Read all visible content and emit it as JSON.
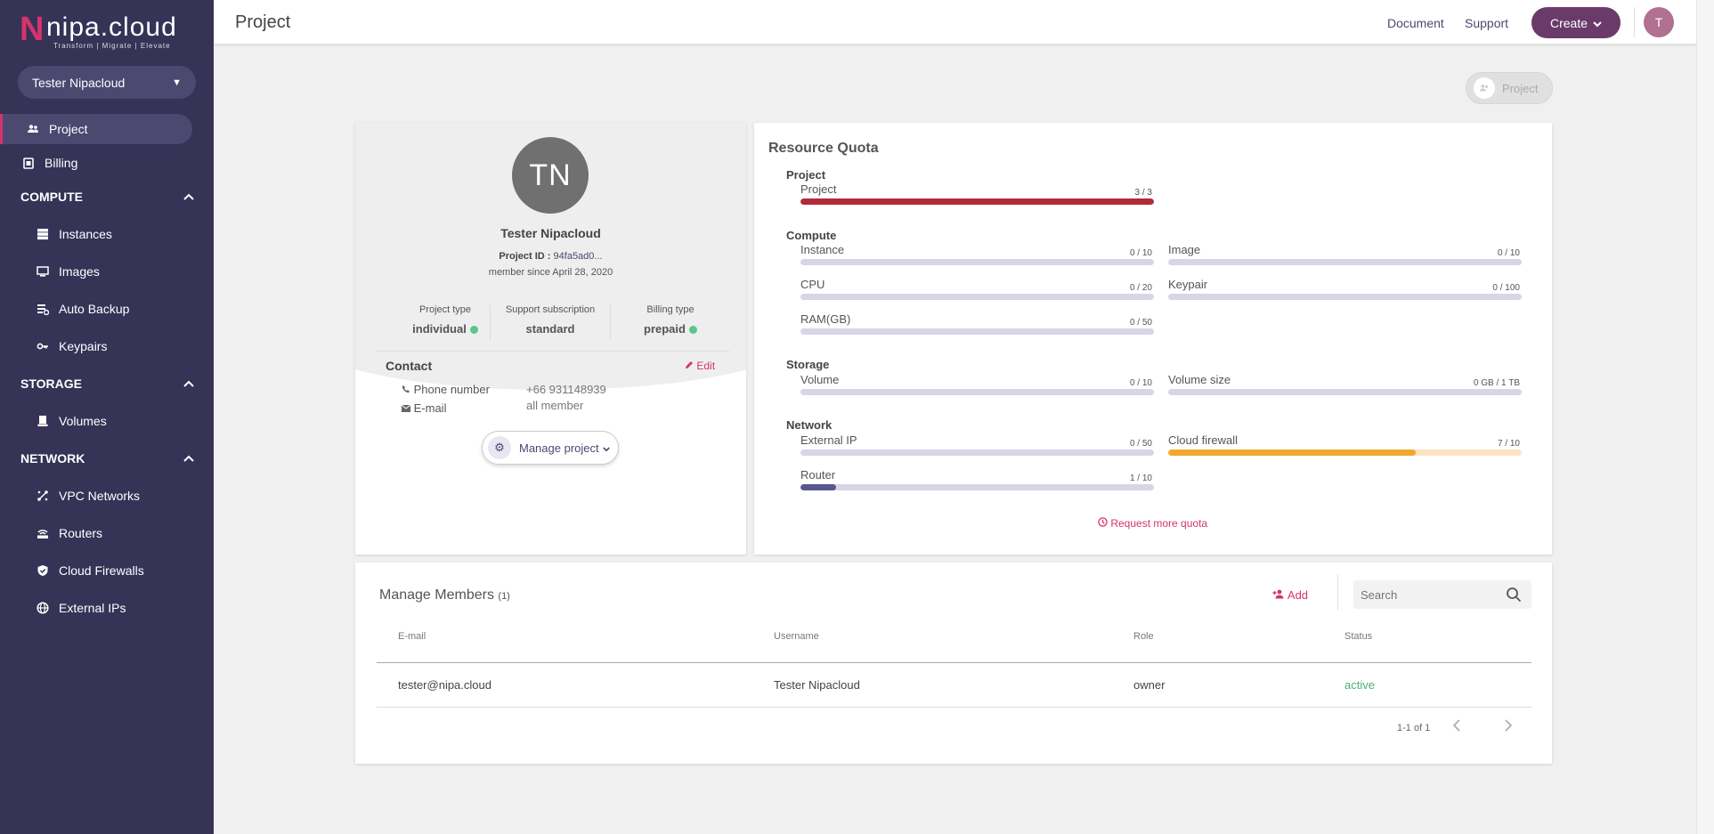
{
  "sidebar": {
    "logo_text": "nipa.cloud",
    "logo_tagline": "Transform  |  Migrate  |  Elevate",
    "org": "Tester Nipacloud",
    "items": {
      "project": "Project",
      "billing": "Billing",
      "compute": "COMPUTE",
      "instances": "Instances",
      "images": "Images",
      "auto_backup": "Auto Backup",
      "keypairs": "Keypairs",
      "storage": "STORAGE",
      "volumes": "Volumes",
      "network": "NETWORK",
      "vpc": "VPC Networks",
      "routers": "Routers",
      "firewalls": "Cloud Firewalls",
      "external_ips": "External IPs"
    }
  },
  "topbar": {
    "title": "Project",
    "document": "Document",
    "support": "Support",
    "create": "Create",
    "avatar": "T"
  },
  "project_pill": "Project",
  "profile": {
    "initials": "TN",
    "name": "Tester Nipacloud",
    "project_id_label": "Project ID :",
    "project_id": "94fa5ad0...",
    "since": "member since April 28, 2020",
    "project_type_label": "Project type",
    "project_type": "individual",
    "support_label": "Support subscription",
    "support": "standard",
    "billing_label": "Billing type",
    "billing": "prepaid",
    "contact_title": "Contact",
    "edit": "Edit",
    "phone_label": "Phone number",
    "phone": "+66 931148939",
    "email_label": "E-mail",
    "email": "all member",
    "manage_btn": "Manage project"
  },
  "quota": {
    "title": "Resource Quota",
    "request": "Request more quota",
    "groups": {
      "project": "Project",
      "compute": "Compute",
      "storage": "Storage",
      "network": "Network"
    },
    "items": {
      "project": {
        "name": "Project",
        "count": "3 / 3",
        "used": 3,
        "limit": 3
      },
      "instance": {
        "name": "Instance",
        "count": "0 / 10",
        "used": 0,
        "limit": 10
      },
      "image": {
        "name": "Image",
        "count": "0 / 10",
        "used": 0,
        "limit": 10
      },
      "cpu": {
        "name": "CPU",
        "count": "0 / 20",
        "used": 0,
        "limit": 20
      },
      "keypair": {
        "name": "Keypair",
        "count": "0 / 100",
        "used": 0,
        "limit": 100
      },
      "ram": {
        "name": "RAM(GB)",
        "count": "0 / 50",
        "used": 0,
        "limit": 50
      },
      "volume": {
        "name": "Volume",
        "count": "0 / 10",
        "used": 0,
        "limit": 10
      },
      "volume_size": {
        "name": "Volume size",
        "count": "0 GB / 1 TB",
        "used": 0,
        "limit": 1
      },
      "external_ip": {
        "name": "External IP",
        "count": "0 / 50",
        "used": 0,
        "limit": 50
      },
      "cloud_firewall": {
        "name": "Cloud firewall",
        "count": "7 / 10",
        "used": 7,
        "limit": 10
      },
      "router": {
        "name": "Router",
        "count": "1 / 10",
        "used": 1,
        "limit": 10
      }
    },
    "colors": {
      "full": "#b22a3a",
      "warn": "#f0a830",
      "warn_track": "#fde3c0",
      "normal": "#5a5690",
      "track": "#d7d5e6"
    }
  },
  "members": {
    "title": "Manage Members",
    "count": "(1)",
    "add": "Add",
    "search_placeholder": "Search",
    "columns": [
      "E-mail",
      "Username",
      "Role",
      "Status"
    ],
    "rows": [
      {
        "email": "tester@nipa.cloud",
        "username": "Tester Nipacloud",
        "role": "owner",
        "status": "active"
      }
    ],
    "pagination": "1-1 of 1"
  }
}
